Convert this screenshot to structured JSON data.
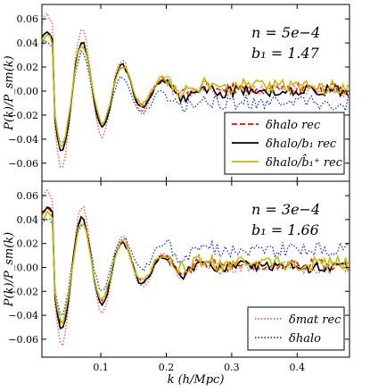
{
  "chart_data": [
    {
      "type": "line",
      "annotation": {
        "line1": "n = 5e−4",
        "line2": "b₁ = 1.47"
      },
      "ylabel": "P(k)/P_sm(k)",
      "xlim": [
        0.01,
        0.48
      ],
      "ylim": [
        -0.075,
        0.072
      ],
      "yticks": [
        -0.06,
        -0.04,
        -0.02,
        0.0,
        0.02,
        0.04,
        0.06
      ],
      "ytick_labels": [
        "−0.06",
        "−0.04",
        "−0.02",
        "0.00",
        "0.02",
        "0.04",
        "0.06"
      ],
      "legend": {
        "position": "lower-right",
        "entries": [
          {
            "label": "δhalo rec",
            "color": "#ff0000",
            "style": "dashed"
          },
          {
            "label": "δhalo/b₁ rec",
            "color": "#000000",
            "style": "solid"
          },
          {
            "label": "δhalo/b̂₁⁺ rec",
            "color": "#bfbf00",
            "style": "solid"
          }
        ]
      },
      "series": [
        {
          "name": "δmat rec",
          "color": "#ff5555",
          "style": "dotted",
          "amp": 1.25,
          "noise": 0.0035,
          "offset": 0.0
        },
        {
          "name": "δhalo",
          "color": "#1f3fd0",
          "style": "dotted",
          "amp": 0.85,
          "noise": 0.004,
          "offset": -0.01
        },
        {
          "name": "δhalo rec",
          "color": "#ff0000",
          "style": "dashed",
          "amp": 0.95,
          "noise": 0.003,
          "offset": 0.002
        },
        {
          "name": "δhalo/b₁ rec",
          "color": "#000000",
          "style": "solid",
          "amp": 1.0,
          "noise": 0.003,
          "offset": 0.0
        },
        {
          "name": "δhalo/b̂₁⁺ rec",
          "color": "#bfbf00",
          "style": "solid",
          "amp": 0.9,
          "noise": 0.004,
          "offset": 0.003
        }
      ]
    },
    {
      "type": "line",
      "annotation": {
        "line1": "n = 3e−4",
        "line2": "b₁ = 1.66"
      },
      "xlabel": "k (h/Mpc)",
      "ylabel": "P(k)/P_sm(k)",
      "xlim": [
        0.01,
        0.48
      ],
      "ylim": [
        -0.075,
        0.072
      ],
      "xticks": [
        0.1,
        0.2,
        0.3,
        0.4
      ],
      "xtick_labels": [
        "0.1",
        "0.2",
        "0.3",
        "0.4"
      ],
      "yticks": [
        -0.06,
        -0.04,
        -0.02,
        0.0,
        0.02,
        0.04,
        0.06
      ],
      "ytick_labels": [
        "−0.06",
        "−0.04",
        "−0.02",
        "0.00",
        "0.02",
        "0.04",
        "0.06"
      ],
      "legend": {
        "position": "lower-right",
        "entries": [
          {
            "label": "δmat rec",
            "color": "#ff5555",
            "style": "dotted"
          },
          {
            "label": "δhalo",
            "color": "#1f3fd0",
            "style": "dotted"
          }
        ]
      },
      "series": [
        {
          "name": "δmat rec",
          "color": "#ff5555",
          "style": "dotted",
          "amp": 1.25,
          "noise": 0.0035,
          "offset": 0.0
        },
        {
          "name": "δhalo",
          "color": "#1f3fd0",
          "style": "dotted",
          "amp": 0.8,
          "noise": 0.004,
          "offset": 0.015
        },
        {
          "name": "δhalo rec",
          "color": "#ff0000",
          "style": "dashed",
          "amp": 0.95,
          "noise": 0.003,
          "offset": 0.002
        },
        {
          "name": "δhalo/b₁ rec",
          "color": "#000000",
          "style": "solid",
          "amp": 1.0,
          "noise": 0.003,
          "offset": 0.0
        },
        {
          "name": "δhalo/b̂₁⁺ rec",
          "color": "#bfbf00",
          "style": "solid",
          "amp": 0.9,
          "noise": 0.004,
          "offset": 0.003
        }
      ]
    }
  ]
}
